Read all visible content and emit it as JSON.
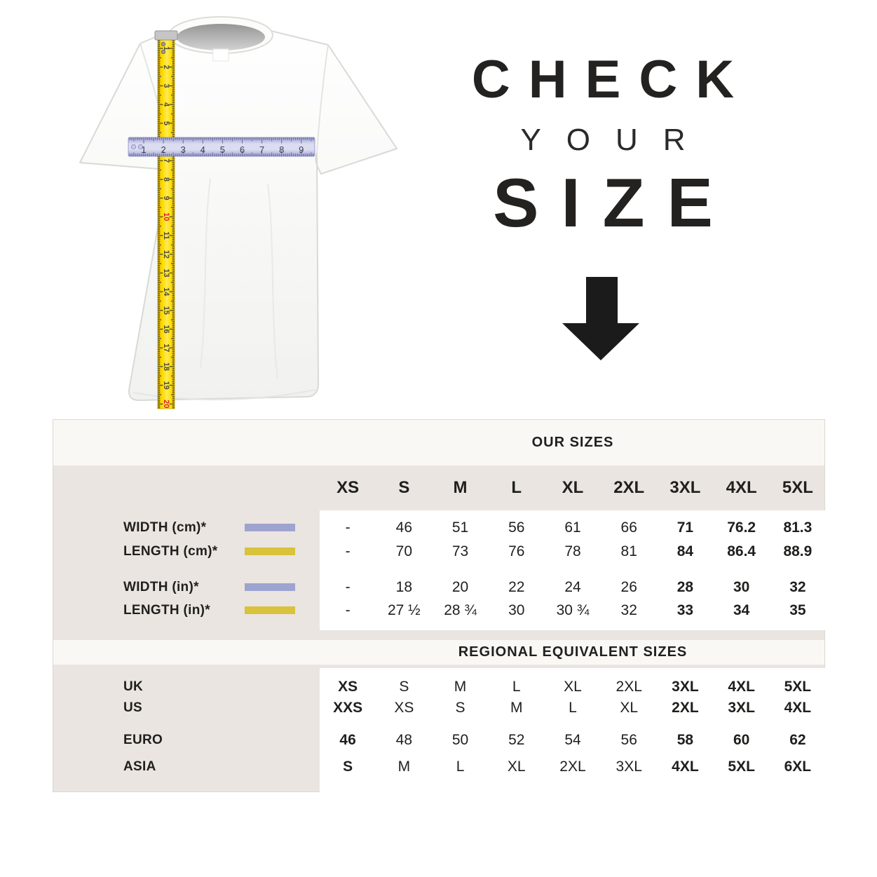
{
  "headline": {
    "line1": "CHECK",
    "line2": "YOUR",
    "line3": "SIZE",
    "arrow_color": "#1b1b1b"
  },
  "illustration": {
    "tape_numbers": [
      "1",
      "2",
      "3",
      "4",
      "5",
      "6",
      "7",
      "8",
      "9",
      "10",
      "11",
      "12",
      "13",
      "14",
      "15",
      "16",
      "17",
      "18",
      "19",
      "20"
    ],
    "tape_red_numbers": [
      "10",
      "20"
    ],
    "ruler_numbers": [
      "1",
      "2",
      "3",
      "4",
      "5",
      "6",
      "7",
      "8",
      "9"
    ],
    "tape_color": "#ffdf00",
    "ruler_color": "#c9cbe8"
  },
  "size_chart": {
    "our_sizes_title": "OUR SIZES",
    "regional_title": "REGIONAL EQUIVALENT SIZES",
    "sizes": [
      "XS",
      "S",
      "M",
      "L",
      "XL",
      "2XL",
      "3XL",
      "4XL",
      "5XL"
    ],
    "colors": {
      "panel_beige": "#eae5e1",
      "band_offwhite": "#faf8f5",
      "swatch_lavender": "#9ea4d0",
      "swatch_yellow": "#d9c23c",
      "text": "#21201e"
    },
    "measurement_rows": [
      {
        "label": "WIDTH (cm)*",
        "swatch": "lavender",
        "values": [
          "-",
          "46",
          "51",
          "56",
          "61",
          "66",
          "71",
          "76.2",
          "81.3"
        ],
        "bold": [
          6,
          7,
          8
        ]
      },
      {
        "label": "LENGTH (cm)*",
        "swatch": "yellow",
        "values": [
          "-",
          "70",
          "73",
          "76",
          "78",
          "81",
          "84",
          "86.4",
          "88.9"
        ],
        "bold": [
          6,
          7,
          8
        ]
      },
      {
        "label": "WIDTH (in)*",
        "swatch": "lavender",
        "values": [
          "-",
          "18",
          "20",
          "22",
          "24",
          "26",
          "28",
          "30",
          "32"
        ],
        "bold": [
          6,
          7,
          8
        ]
      },
      {
        "label": "LENGTH (in)*",
        "swatch": "yellow",
        "values": [
          "-",
          "27 ½",
          "28 ¾",
          "30",
          "30 ¾",
          "32",
          "33",
          "34",
          "35"
        ],
        "bold": [
          6,
          7,
          8
        ]
      }
    ],
    "regional_rows": [
      {
        "label": "UK",
        "values": [
          "XS",
          "S",
          "M",
          "L",
          "XL",
          "2XL",
          "3XL",
          "4XL",
          "5XL"
        ],
        "bold": [
          0,
          6,
          7,
          8
        ]
      },
      {
        "label": "US",
        "values": [
          "XXS",
          "XS",
          "S",
          "M",
          "L",
          "XL",
          "2XL",
          "3XL",
          "4XL"
        ],
        "bold": [
          0,
          6,
          7,
          8
        ]
      },
      {
        "label": "EURO",
        "values": [
          "46",
          "48",
          "50",
          "52",
          "54",
          "56",
          "58",
          "60",
          "62"
        ],
        "bold": [
          0,
          6,
          7,
          8
        ]
      },
      {
        "label": "ASIA",
        "values": [
          "S",
          "M",
          "L",
          "XL",
          "2XL",
          "3XL",
          "4XL",
          "5XL",
          "6XL"
        ],
        "bold": [
          0,
          6,
          7,
          8
        ]
      }
    ]
  }
}
